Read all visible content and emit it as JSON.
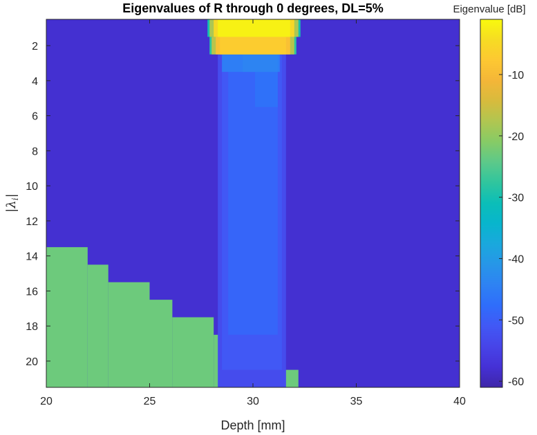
{
  "chart_data": {
    "type": "heatmap",
    "title": "Eigenvalues of R through 0 degrees, DL=5%",
    "xlabel": "Depth [mm]",
    "ylabel": "|λ_i|",
    "ylabel_display": "|λ",
    "ylabel_sub": "i",
    "ylabel_close": "|",
    "xlim": [
      20,
      40
    ],
    "ylim": [
      0.5,
      21.5
    ],
    "y_reversed": true,
    "x_ticks": [
      20,
      25,
      30,
      35,
      40
    ],
    "y_ticks": [
      2,
      4,
      6,
      8,
      10,
      12,
      14,
      16,
      18,
      20
    ],
    "colorbar": {
      "title": "Eigenvalue [dB]",
      "clim": [
        -61,
        -1
      ],
      "ticks": [
        -10,
        -20,
        -30,
        -40,
        -50,
        -60
      ],
      "colormap": "parula"
    },
    "background_db": -58,
    "regions": [
      {
        "x0": 20.0,
        "x1": 22.0,
        "y0": 13.5,
        "y1": 21.5,
        "value_db": -23
      },
      {
        "x0": 22.0,
        "x1": 23.0,
        "y0": 14.5,
        "y1": 21.5,
        "value_db": -23
      },
      {
        "x0": 23.0,
        "x1": 25.0,
        "y0": 15.5,
        "y1": 21.5,
        "value_db": -23
      },
      {
        "x0": 25.0,
        "x1": 26.1,
        "y0": 16.5,
        "y1": 21.5,
        "value_db": -23
      },
      {
        "x0": 26.1,
        "x1": 28.1,
        "y0": 17.5,
        "y1": 21.5,
        "value_db": -23
      },
      {
        "x0": 28.1,
        "x1": 29.1,
        "y0": 18.5,
        "y1": 21.5,
        "value_db": -23
      },
      {
        "x0": 29.1,
        "x1": 31.2,
        "y0": 19.5,
        "y1": 21.5,
        "value_db": -23
      },
      {
        "x0": 31.2,
        "x1": 32.2,
        "y0": 20.5,
        "y1": 21.5,
        "value_db": -23
      },
      {
        "x0": 28.3,
        "x1": 31.6,
        "y0": 2.5,
        "y1": 21.5,
        "value_db": -53
      },
      {
        "x0": 28.5,
        "x1": 31.4,
        "y0": 2.5,
        "y1": 20.5,
        "value_db": -51
      },
      {
        "x0": 28.8,
        "x1": 31.2,
        "y0": 2.5,
        "y1": 18.5,
        "value_db": -49
      },
      {
        "x0": 30.1,
        "x1": 31.2,
        "y0": 2.5,
        "y1": 5.5,
        "value_db": -47
      },
      {
        "x0": 28.5,
        "x1": 31.3,
        "y0": 2.5,
        "y1": 3.5,
        "value_db": -45
      },
      {
        "x0": 29.5,
        "x1": 31.2,
        "y0": 2.5,
        "y1": 3.5,
        "value_db": -44
      },
      {
        "x0": 27.9,
        "x1": 32.1,
        "y0": 1.5,
        "y1": 2.5,
        "value_db": -28
      },
      {
        "x0": 28.0,
        "x1": 32.0,
        "y0": 1.5,
        "y1": 2.5,
        "value_db": -17
      },
      {
        "x0": 28.2,
        "x1": 31.8,
        "y0": 1.5,
        "y1": 2.5,
        "value_db": -9
      },
      {
        "x0": 28.4,
        "x1": 31.6,
        "y0": 1.5,
        "y1": 2.5,
        "value_db": -7
      },
      {
        "x0": 27.8,
        "x1": 32.3,
        "y0": 0.5,
        "y1": 1.5,
        "value_db": -30
      },
      {
        "x0": 27.9,
        "x1": 32.2,
        "y0": 0.5,
        "y1": 1.5,
        "value_db": -18
      },
      {
        "x0": 28.1,
        "x1": 32.0,
        "y0": 0.5,
        "y1": 1.5,
        "value_db": -5
      },
      {
        "x0": 28.3,
        "x1": 31.8,
        "y0": 0.5,
        "y1": 1.5,
        "value_db": -2
      }
    ]
  }
}
